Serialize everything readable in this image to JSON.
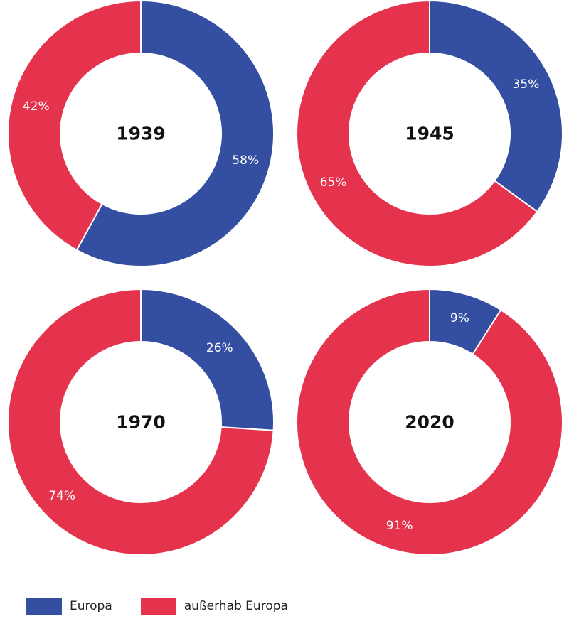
{
  "chart_data": [
    {
      "type": "pie",
      "title": "1939",
      "categories": [
        "Europa",
        "außerhab Europa"
      ],
      "values": [
        58,
        42
      ],
      "labels": [
        "58%",
        "42%"
      ]
    },
    {
      "type": "pie",
      "title": "1945",
      "categories": [
        "Europa",
        "außerhab Europa"
      ],
      "values": [
        35,
        65
      ],
      "labels": [
        "35%",
        "65%"
      ]
    },
    {
      "type": "pie",
      "title": "1970",
      "categories": [
        "Europa",
        "außerhab Europa"
      ],
      "values": [
        26,
        74
      ],
      "labels": [
        "26%",
        "74%"
      ]
    },
    {
      "type": "pie",
      "title": "2020",
      "categories": [
        "Europa",
        "außerhab Europa"
      ],
      "values": [
        9,
        91
      ],
      "labels": [
        "9%",
        "91%"
      ]
    }
  ],
  "legend": {
    "position": "bottom-left",
    "items": [
      {
        "label": "Europa",
        "color": "#344ea2"
      },
      {
        "label": "außerhab Europa",
        "color": "#e5334e"
      }
    ]
  },
  "colors": {
    "europa": "#344ea2",
    "outside": "#e5334e",
    "separator": "#ffffff"
  }
}
